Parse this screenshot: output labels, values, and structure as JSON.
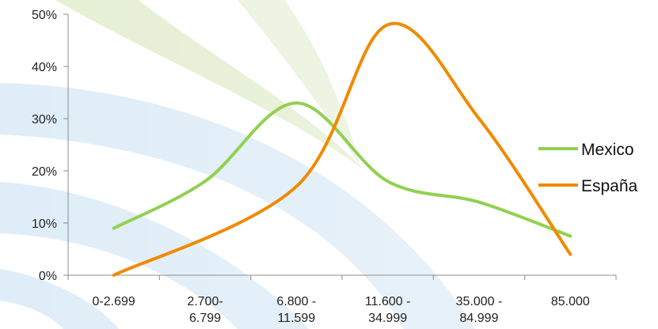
{
  "chart_data": {
    "type": "line",
    "title": "",
    "xlabel": "",
    "ylabel": "",
    "categories": [
      [
        "0-2.699"
      ],
      [
        "2.700-",
        "6.799"
      ],
      [
        "6.800 -",
        "11.599"
      ],
      [
        "11.600 -",
        "34.999"
      ],
      [
        "35.000 -",
        "84.999"
      ],
      [
        "85.000"
      ]
    ],
    "y_ticks": [
      "0%",
      "10%",
      "20%",
      "30%",
      "40%",
      "50%"
    ],
    "ylim": [
      0,
      50
    ],
    "grid": false,
    "legend_position": "right",
    "series": [
      {
        "name": "Mexico",
        "color": "#92d050",
        "values": [
          9,
          18,
          33,
          18,
          14,
          7.5
        ]
      },
      {
        "name": "España",
        "color": "#f08a00",
        "values": [
          0,
          null,
          17,
          48,
          30,
          4
        ]
      }
    ]
  }
}
